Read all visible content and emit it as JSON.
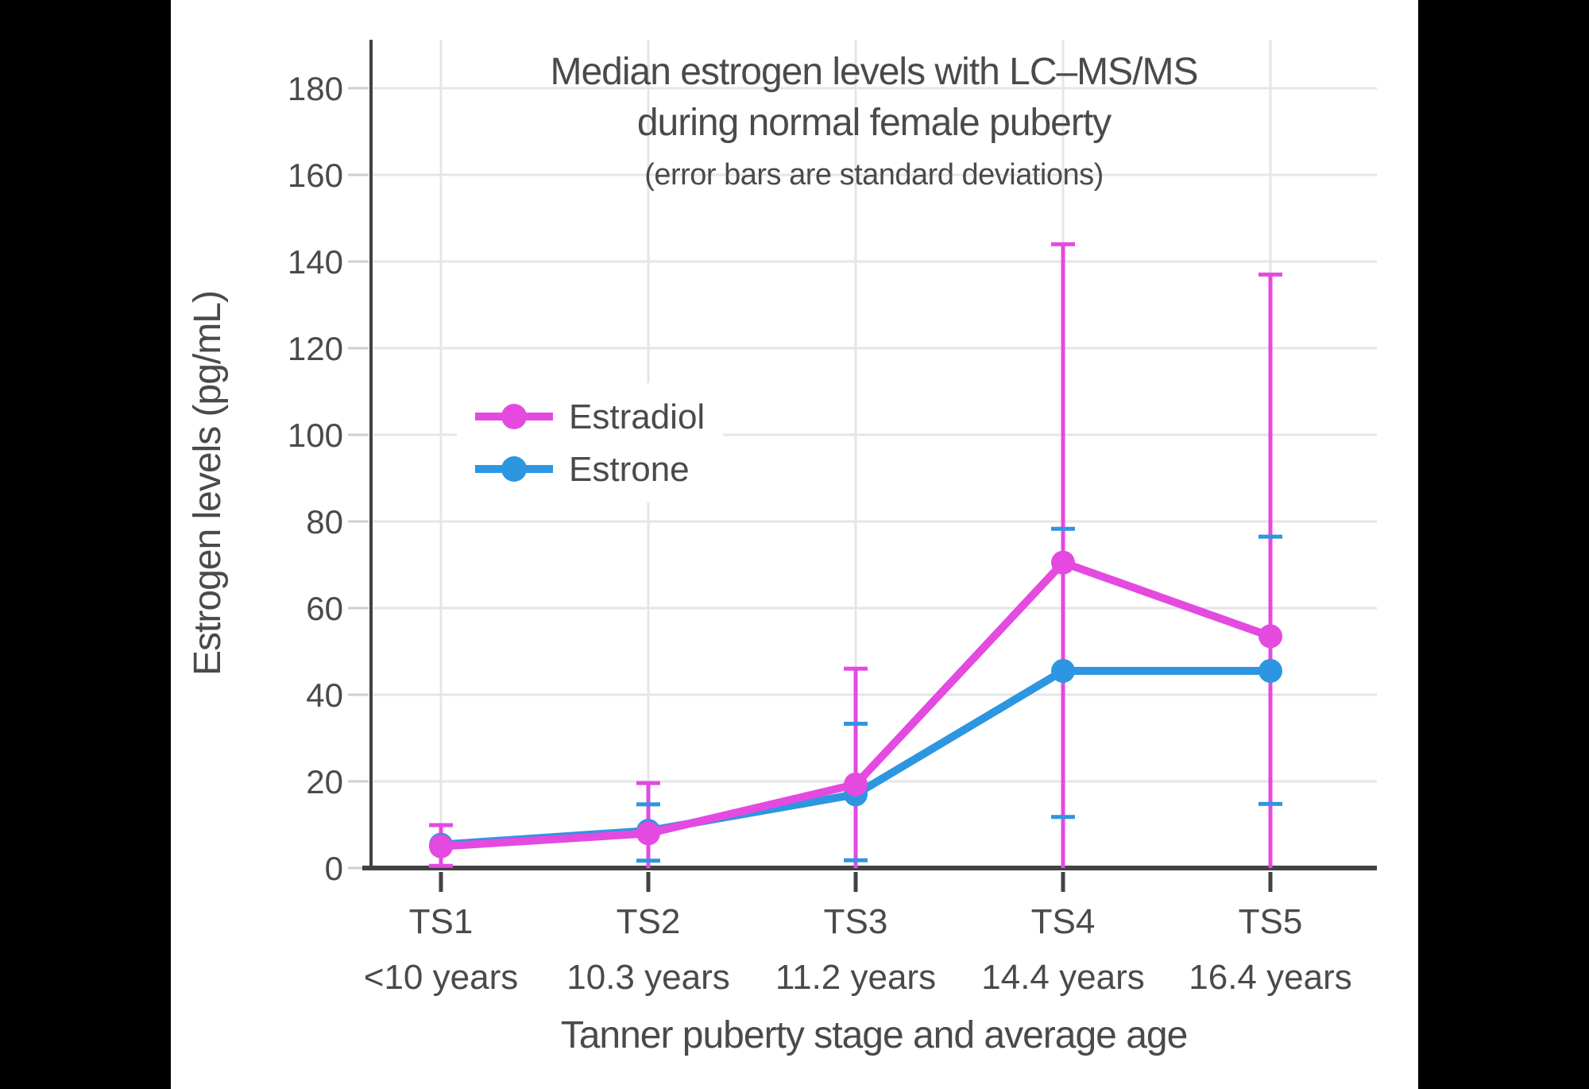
{
  "colors": {
    "letterbox": "#000000",
    "background": "#ffffff",
    "axis": "#424242",
    "grid": "#e6e6e6",
    "y_tick_stub": "#cfcfcf",
    "text": "#4a4a4a",
    "estradiol": "#e44ae0",
    "estrone": "#2d96e0"
  },
  "chart_data": {
    "type": "line",
    "title_line1": "Median estrogen levels with LC–MS/MS",
    "title_line2": "during normal female puberty",
    "subtitle": "(error bars are standard deviations)",
    "xlabel": "Tanner puberty stage and average age",
    "ylabel": "Estrogen levels (pg/mL)",
    "ylim": [
      0,
      190
    ],
    "yticks": [
      0,
      20,
      40,
      60,
      80,
      100,
      120,
      140,
      160,
      180
    ],
    "grid": true,
    "legend_position": "inside-upper-left",
    "categories": [
      "TS1",
      "TS2",
      "TS3",
      "TS4",
      "TS5"
    ],
    "category_ages": [
      "<10 years",
      "10.3 years",
      "11.2 years",
      "14.4 years",
      "16.4 years"
    ],
    "series": [
      {
        "name": "Estradiol",
        "color_key": "estradiol",
        "values": [
          5,
          8,
          19.3,
          70.5,
          53.5
        ],
        "error_upper_abs": [
          9.9,
          19.6,
          46,
          144,
          137
        ],
        "error_lower_abs": [
          0.5,
          0,
          0,
          0,
          0
        ],
        "lower_cap_visible": [
          true,
          false,
          false,
          false,
          false
        ],
        "upper_cap_visible": [
          true,
          true,
          true,
          true,
          true
        ]
      },
      {
        "name": "Estrone",
        "color_key": "estrone",
        "values": [
          5.4,
          8.6,
          17,
          45.5,
          45.5
        ],
        "error_upper_abs": [
          null,
          14.7,
          33.3,
          78.3,
          76.5
        ],
        "error_lower_abs": [
          null,
          1.7,
          1.8,
          11.8,
          14.8
        ],
        "lower_cap_visible": [
          false,
          true,
          true,
          true,
          true
        ],
        "upper_cap_visible": [
          false,
          true,
          true,
          true,
          true
        ]
      }
    ]
  }
}
